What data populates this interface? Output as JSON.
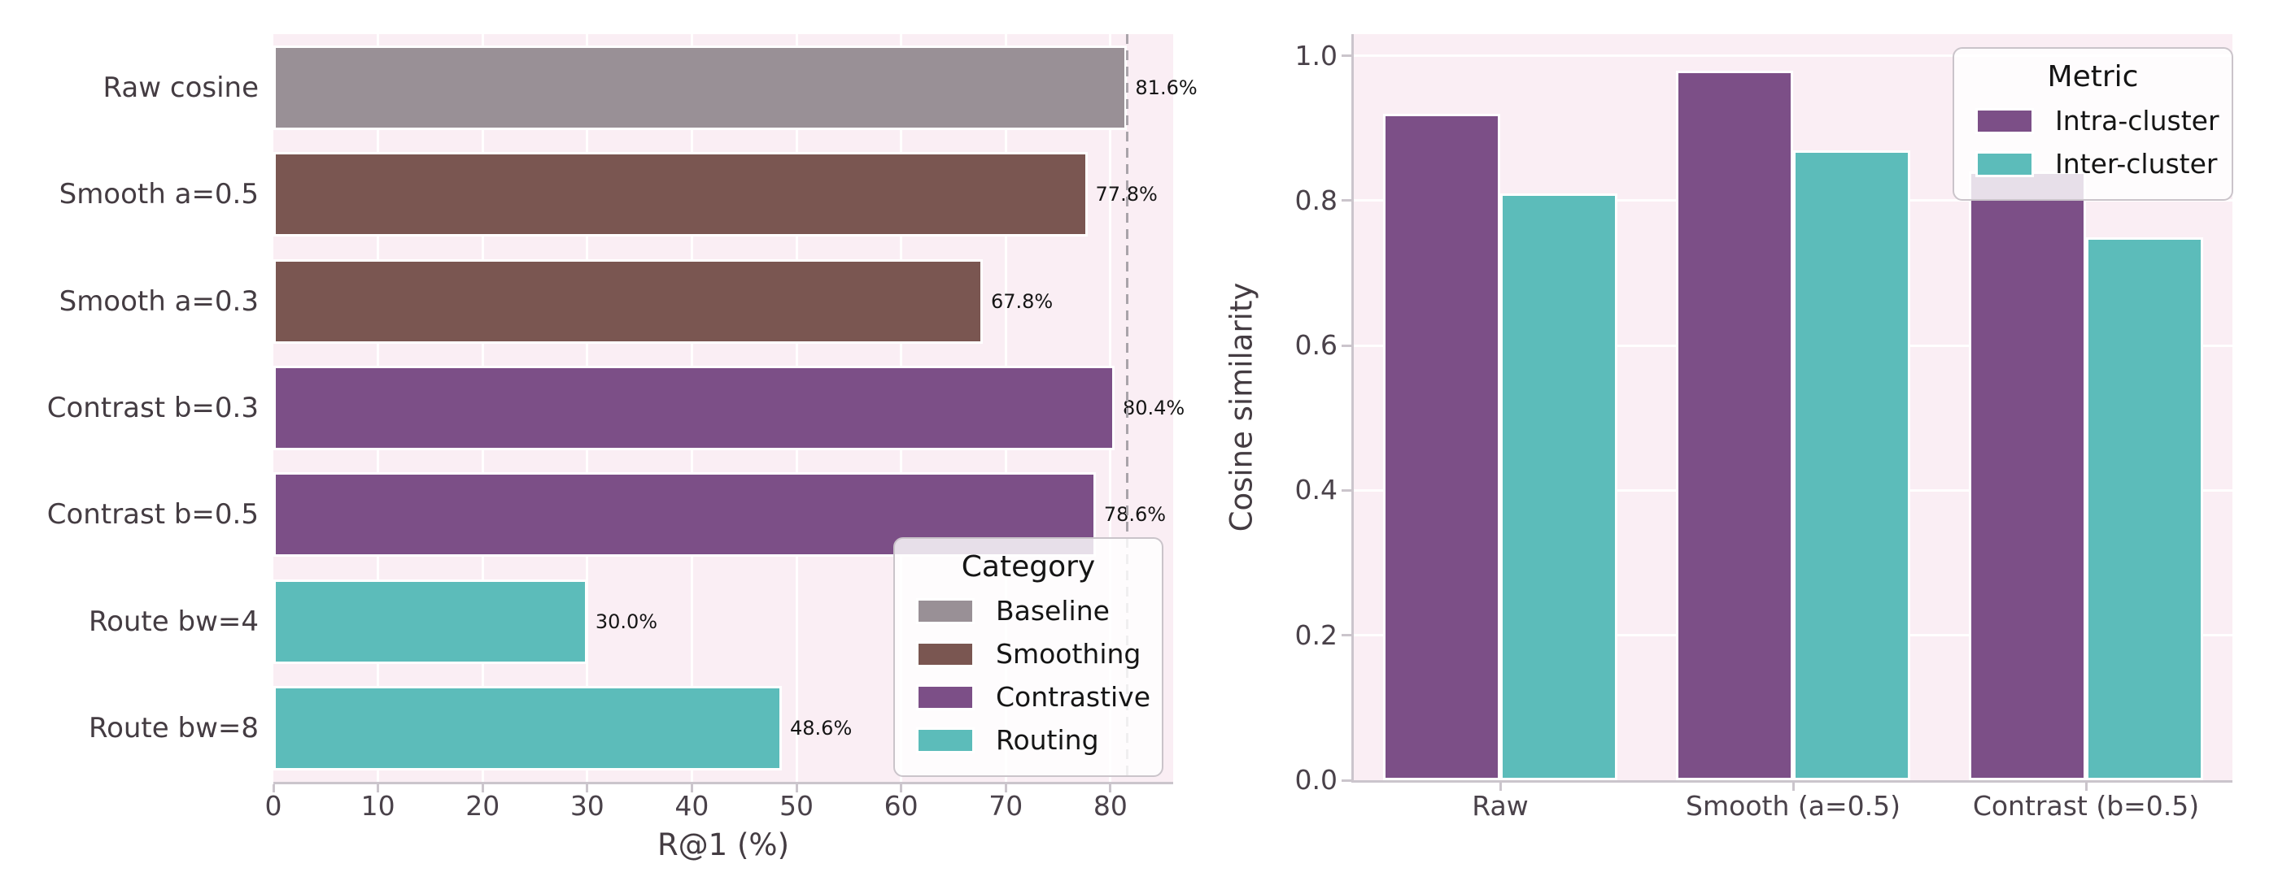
{
  "colors": {
    "figure_bg": "#ffffff",
    "plot_bg": "#faeef4",
    "grid": "#ffffff",
    "spine": "#cbc5cc",
    "tick_label": "#4a424a",
    "axis_title": "#443c42",
    "annotation": "#151515",
    "baseline_dash": "#a9a4aa",
    "bar_edge": "#ffffff",
    "legend_bg": "rgba(255,255,255,0.82)",
    "legend_border": "#cac4ca"
  },
  "chart_data": [
    {
      "type": "bar",
      "orientation": "horizontal",
      "title": "",
      "xlabel": "R@1 (%)",
      "ylabel": "",
      "xlim": [
        0,
        86
      ],
      "xticks": [
        0,
        10,
        20,
        30,
        40,
        50,
        60,
        70,
        80
      ],
      "grid": "vertical",
      "categories": [
        "Raw cosine",
        "Smooth a=0.5",
        "Smooth a=0.3",
        "Contrast b=0.3",
        "Contrast b=0.5",
        "Route bw=4",
        "Route bw=8"
      ],
      "values": [
        81.6,
        77.8,
        67.8,
        80.4,
        78.6,
        30.0,
        48.6
      ],
      "value_labels": [
        "81.6%",
        "77.8%",
        "67.8%",
        "80.4%",
        "78.6%",
        "30.0%",
        "48.6%"
      ],
      "bar_categories": [
        "Baseline",
        "Smoothing",
        "Smoothing",
        "Contrastive",
        "Contrastive",
        "Routing",
        "Routing"
      ],
      "color_map": {
        "Baseline": "#999096",
        "Smoothing": "#7a5651",
        "Contrastive": "#7c4f87",
        "Routing": "#5cbcba"
      },
      "baseline": {
        "value": 81.6,
        "style": "dashed"
      },
      "legend": {
        "title": "Category",
        "position": "lower right",
        "entries": [
          {
            "label": "Baseline",
            "color": "#999096"
          },
          {
            "label": "Smoothing",
            "color": "#7a5651"
          },
          {
            "label": "Contrastive",
            "color": "#7c4f87"
          },
          {
            "label": "Routing",
            "color": "#5cbcba"
          }
        ]
      }
    },
    {
      "type": "bar",
      "orientation": "vertical",
      "title": "",
      "xlabel": "",
      "ylabel": "Cosine similarity",
      "ylim": [
        0,
        1.03
      ],
      "yticks": [
        0.0,
        0.2,
        0.4,
        0.6,
        0.8,
        1.0
      ],
      "ytick_labels": [
        "0.0",
        "0.2",
        "0.4",
        "0.6",
        "0.8",
        "1.0"
      ],
      "grid": "horizontal",
      "categories": [
        "Raw",
        "Smooth (a=0.5)",
        "Contrast (b=0.5)"
      ],
      "series": [
        {
          "name": "Intra-cluster",
          "color": "#7c4f87",
          "values": [
            0.92,
            0.98,
            0.84
          ]
        },
        {
          "name": "Inter-cluster",
          "color": "#5cbcba",
          "values": [
            0.81,
            0.87,
            0.75
          ]
        }
      ],
      "legend": {
        "title": "Metric",
        "position": "upper right",
        "entries": [
          {
            "label": "Intra-cluster",
            "color": "#7c4f87"
          },
          {
            "label": "Inter-cluster",
            "color": "#5cbcba"
          }
        ]
      }
    }
  ]
}
